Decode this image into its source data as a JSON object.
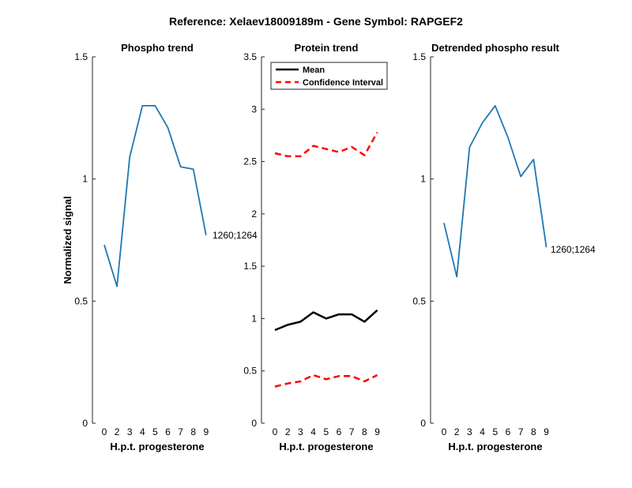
{
  "figure": {
    "title": "Reference:  Xelaev18009189m - Gene Symbol:  RAPGEF2"
  },
  "chart_data": [
    {
      "type": "line",
      "title": "Phospho trend",
      "xlabel": "H.p.t. progesterone",
      "ylabel": "Normalized signal",
      "x": [
        0,
        2,
        3,
        4,
        5,
        6,
        7,
        8,
        9
      ],
      "xticks": [
        "0",
        "2",
        "3",
        "4",
        "5",
        "6",
        "7",
        "8",
        "9"
      ],
      "ylim": [
        0,
        1.5
      ],
      "yticks": [
        "0",
        "0.5",
        "1",
        "1.5"
      ],
      "series": [
        {
          "color": "#1f77b4",
          "values": [
            0.73,
            0.56,
            1.09,
            1.3,
            1.3,
            1.21,
            1.05,
            1.04,
            0.77
          ]
        }
      ],
      "annotation": "1260;1264",
      "grid": false
    },
    {
      "type": "line",
      "title": "Protein trend",
      "xlabel": "H.p.t. progesterone",
      "ylabel": "",
      "x": [
        0,
        2,
        3,
        4,
        5,
        6,
        7,
        8,
        9
      ],
      "xticks": [
        "0",
        "2",
        "3",
        "4",
        "5",
        "6",
        "7",
        "8",
        "9"
      ],
      "ylim": [
        0,
        3.5
      ],
      "yticks": [
        "0",
        "0.5",
        "1",
        "1.5",
        "2",
        "2.5",
        "3",
        "3.5"
      ],
      "legend": {
        "placement": "top-left",
        "entries": [
          "Mean",
          "Confidence Interval"
        ]
      },
      "series": [
        {
          "name": "Mean",
          "color": "#000000",
          "style": "solid",
          "values": [
            0.89,
            0.94,
            0.97,
            1.06,
            1.0,
            1.04,
            1.04,
            0.97,
            1.08
          ]
        },
        {
          "name": "Confidence Interval",
          "color": "#ff0000",
          "style": "dashed",
          "values": [
            2.58,
            2.55,
            2.55,
            2.65,
            2.62,
            2.59,
            2.64,
            2.56,
            2.78
          ]
        },
        {
          "name": "Confidence Interval",
          "color": "#ff0000",
          "style": "dashed",
          "values": [
            0.35,
            0.38,
            0.4,
            0.46,
            0.42,
            0.45,
            0.45,
            0.4,
            0.46
          ]
        }
      ],
      "grid": false
    },
    {
      "type": "line",
      "title": "Detrended phospho result",
      "xlabel": "H.p.t. progesterone",
      "ylabel": "",
      "x": [
        0,
        2,
        3,
        4,
        5,
        6,
        7,
        8,
        9
      ],
      "xticks": [
        "0",
        "2",
        "3",
        "4",
        "5",
        "6",
        "7",
        "8",
        "9"
      ],
      "ylim": [
        0,
        1.5
      ],
      "yticks": [
        "0",
        "0.5",
        "1",
        "1.5"
      ],
      "series": [
        {
          "color": "#1f77b4",
          "values": [
            0.82,
            0.6,
            1.13,
            1.23,
            1.3,
            1.17,
            1.01,
            1.08,
            0.72
          ]
        }
      ],
      "annotation": "1260;1264",
      "grid": false
    }
  ]
}
